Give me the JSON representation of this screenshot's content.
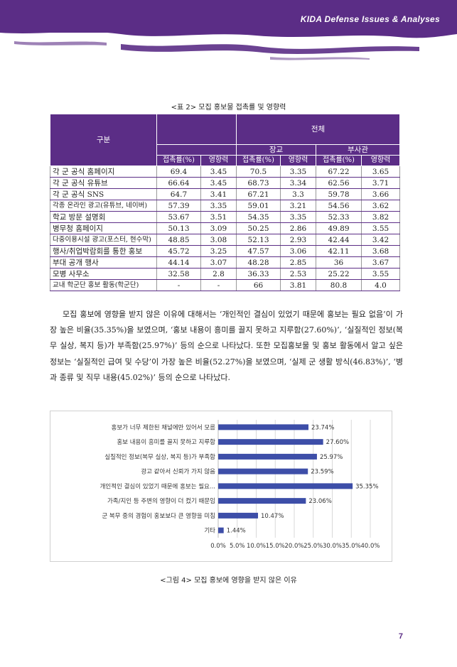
{
  "header": {
    "title": "KIDA Defense Issues & Analyses",
    "accent_color": "#5b2d86"
  },
  "table": {
    "caption": "<표 2> 모집 홍보물 접촉률 및 영향력",
    "header_label": "구분",
    "group_total": "전체",
    "group_officer": "장교",
    "group_nco": "부사관",
    "col_contact": "접촉률(%)",
    "col_influence": "영향력",
    "rows": [
      {
        "label": "각 군 공식 홈페이지",
        "v": [
          "69.4",
          "3.45",
          "70.5",
          "3.35",
          "67.22",
          "3.65"
        ]
      },
      {
        "label": "각 군 공식 유튜브",
        "v": [
          "66.64",
          "3.45",
          "68.73",
          "3.34",
          "62.56",
          "3.71"
        ]
      },
      {
        "label": "각 군 공식 SNS",
        "v": [
          "64.7",
          "3.41",
          "67.21",
          "3.3",
          "59.78",
          "3.66"
        ]
      },
      {
        "label": "각종 온라인 광고(유튜브, 네이버)",
        "v": [
          "57.39",
          "3.35",
          "59.01",
          "3.21",
          "54.56",
          "3.62"
        ]
      },
      {
        "label": "학교 방문 설명회",
        "v": [
          "53.67",
          "3.51",
          "54.35",
          "3.35",
          "52.33",
          "3.82"
        ]
      },
      {
        "label": "병무청 홈페이지",
        "v": [
          "50.13",
          "3.09",
          "50.25",
          "2.86",
          "49.89",
          "3.55"
        ]
      },
      {
        "label": "다중이용시설 광고(포스터, 현수막)",
        "v": [
          "48.85",
          "3.08",
          "52.13",
          "2.93",
          "42.44",
          "3.42"
        ]
      },
      {
        "label": "행사/취업박람회를 통한 홍보",
        "v": [
          "45.72",
          "3.25",
          "47.57",
          "3.06",
          "42.11",
          "3.68"
        ]
      },
      {
        "label": "부대 공개 행사",
        "v": [
          "44.14",
          "3.07",
          "48.28",
          "2.85",
          "36",
          "3.67"
        ]
      },
      {
        "label": "모병 사무소",
        "v": [
          "32.58",
          "2.8",
          "36.33",
          "2.53",
          "25.22",
          "3.55"
        ]
      },
      {
        "label": "교내 학군단 홍보 활동(학군단)",
        "v": [
          "-",
          "-",
          "66",
          "3.81",
          "80.8",
          "4.0"
        ]
      }
    ]
  },
  "paragraph": "모집 홍보에 영향을 받지 않은 이유에 대해서는 ‘개인적인 결심이 있었기 때문에 홍보는 필요 없음’이 가장 높은 비율(35.35%)을 보였으며, ‘홍보 내용이 흥미를 끌지 못하고 지루함(27.60%)’, ‘실질적인 정보(복무 실상, 복지 등)가 부족함(25.97%)’ 등의 순으로 나타났다. 또한 모집홍보물 및 홍보 활동에서 알고 싶은 정보는 ‘실질적인 급여 및 수당’이 가장 높은 비율(52.27%)을 보였으며, ‘실제 군 생활 방식(46.83%)’, ‘병과 종류 및 직무 내용(45.02%)’ 등의 순으로 나타났다.",
  "chart_data": {
    "type": "bar",
    "orientation": "horizontal",
    "categories": [
      "홍보가 너무 제한된 채널에만 있어서 모름",
      "홍보 내용이 흥미를 끌지 못하고 지루함",
      "실질적인 정보(복무 실상, 복지 등)가 부족함",
      "광고 같아서 신뢰가 가지 않음",
      "개인적인 결심이 있었기 때문에 홍보는 필요...",
      "가족/지인 등 주변의 영향이 더 컸기 때문임",
      "군 복무 중의 경험이 홍보보다 큰 영향을 미침",
      "기타"
    ],
    "values": [
      23.74,
      27.6,
      25.97,
      23.59,
      35.35,
      23.06,
      10.47,
      1.44
    ],
    "value_labels": [
      "23.74%",
      "27.60%",
      "25.97%",
      "23.59%",
      "35.35%",
      "23.06%",
      "10.47%",
      "1.44%"
    ],
    "xlim": [
      0,
      40
    ],
    "xticks": [
      "0.0%",
      "5.0%",
      "10.0%",
      "15.0%",
      "20.0%",
      "25.0%",
      "30.0%",
      "35.0%",
      "40.0%"
    ],
    "grid": true,
    "bar_color": "#3d4ea8"
  },
  "figure_caption": "<그림 4> 모집 홍보에 영향을 받지 않은 이유",
  "page_number": "7"
}
